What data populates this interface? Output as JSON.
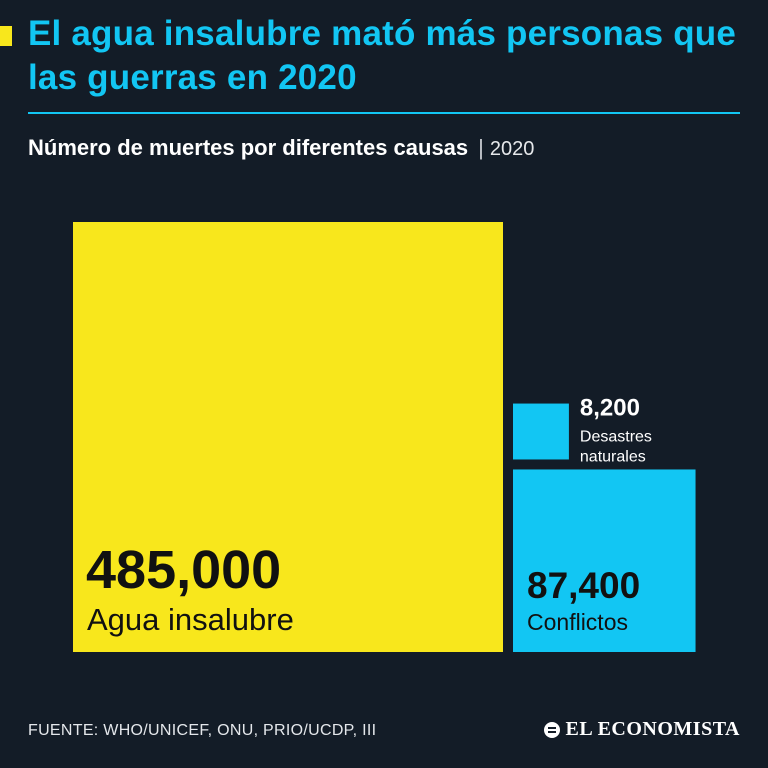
{
  "header": {
    "title": "El agua insalubre mató más personas que las guerras en 2020",
    "subtitle": "Número de muertes por diferentes causas",
    "subtitle_separator": "|",
    "year": "2020"
  },
  "chart_data": {
    "type": "area-squares",
    "title": "El agua insalubre mató más personas que las guerras en 2020",
    "subtitle": "Número de muertes por diferentes causas | 2020",
    "categories": [
      "Agua insalubre",
      "Conflictos",
      "Desastres naturales"
    ],
    "values": [
      485000,
      87400,
      8200
    ],
    "value_labels": [
      "485,000",
      "87,400",
      "8,200"
    ],
    "label_lines": [
      [
        "Agua insalubre"
      ],
      [
        "Conflictos"
      ],
      [
        "Desastres",
        "naturales"
      ]
    ],
    "colors": [
      "#f8e71c",
      "#12c6f3",
      "#12c6f3"
    ],
    "label_color_dark": "#111111",
    "label_color_light": "#ffffff"
  },
  "footer": {
    "source": "FUENTE: WHO/UNICEF, ONU, PRIO/UCDP, III",
    "logo": "EL ECONOMISTA"
  }
}
